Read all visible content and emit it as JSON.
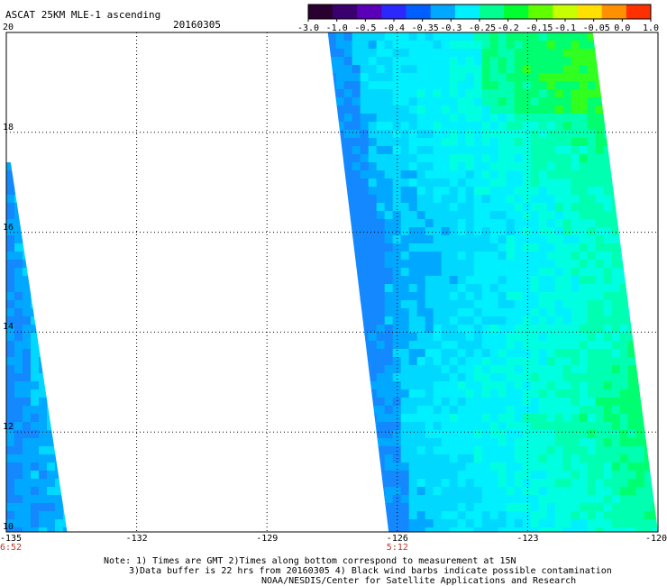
{
  "header": {
    "title": "ASCAT 25KM MLE-1 ascending",
    "date": "20160305"
  },
  "colorbar": {
    "colors": [
      "#2a0030",
      "#3b0070",
      "#5a00b8",
      "#2a28ff",
      "#0060ff",
      "#00a8ff",
      "#00f0ff",
      "#00ff90",
      "#00ff30",
      "#60ff00",
      "#c8ff00",
      "#ffe000",
      "#ff9000",
      "#ff3000"
    ],
    "labels": [
      "-3.0",
      "-1.0",
      "-0.5",
      "-0.4",
      "-0.35",
      "-0.3",
      "-0.25",
      "-0.2",
      "-0.15",
      "-0.1",
      "-0.05",
      "0.0",
      "1.0"
    ]
  },
  "axes": {
    "lat_labels": [
      "20",
      "18",
      "16",
      "14",
      "12",
      "10"
    ],
    "lon_labels": [
      "-135",
      "-132",
      "-129",
      "-126",
      "-123",
      "-120"
    ],
    "lat_range": [
      10,
      20
    ],
    "lon_range": [
      -135,
      -120
    ],
    "grid": "dotted"
  },
  "time_labels": [
    {
      "lon": -135,
      "text": "6:52"
    },
    {
      "lon": -126,
      "text": "5:12"
    }
  ],
  "swaths": [
    {
      "name": "east-swath",
      "corners_lonlat": [
        [
          -127.6,
          20
        ],
        [
          -121.5,
          20
        ],
        [
          -120,
          10
        ],
        [
          -126.2,
          10
        ]
      ]
    },
    {
      "name": "west-swath",
      "corners_lonlat": [
        [
          -135,
          17.4
        ],
        [
          -134.9,
          17.4
        ],
        [
          -133.6,
          10
        ],
        [
          -135,
          10
        ]
      ]
    }
  ],
  "footer": {
    "note1": "Note: 1) Times are GMT 2)Times along bottom correspond to measurement at 15N",
    "note2": "3)Data buffer is 22 hrs from 20160305 4) Black wind barbs indicate possible contamination",
    "credit": "NOAA/NESDIS/Center for Satellite Applications and Research"
  }
}
